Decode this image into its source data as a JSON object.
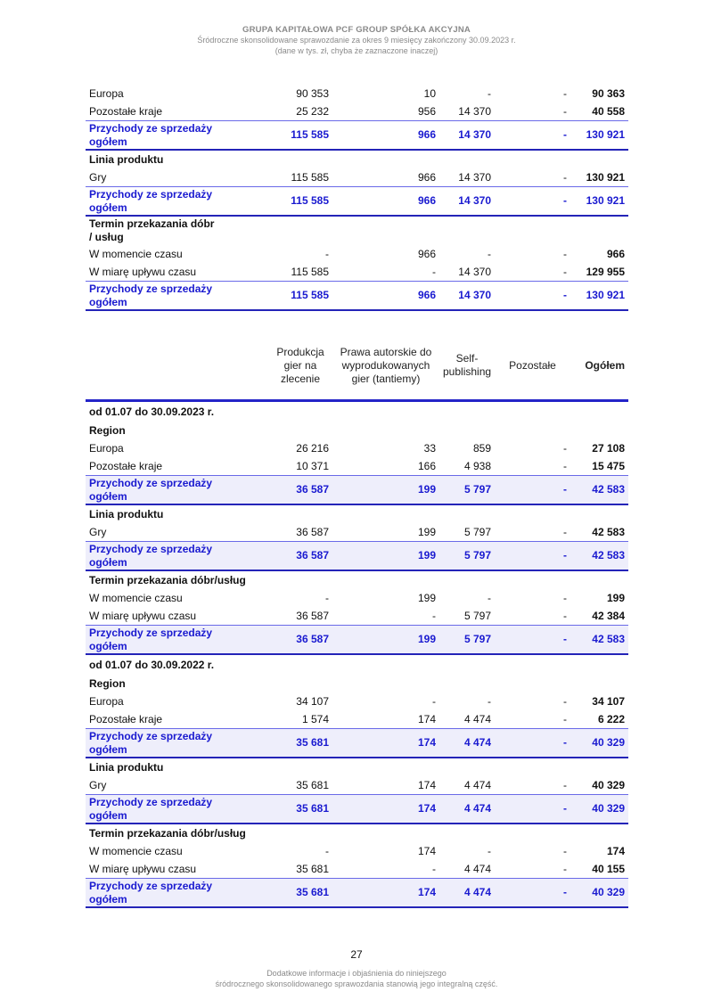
{
  "header": {
    "company": "GRUPA KAPITAŁOWA PCF GROUP SPÓŁKA AKCYJNA",
    "subtitle": "Śródroczne skonsolidowane sprawozdanie za okres 9 miesięcy zakończony 30.09.2023 r.",
    "units": "(dane w tys. zł, chyba że zaznaczone inaczej)"
  },
  "table1": {
    "rows": [
      {
        "type": "normal",
        "label": "Europa",
        "values": [
          "90 353",
          "10",
          "-",
          "-",
          "90 363"
        ]
      },
      {
        "type": "normal",
        "label": "Pozostałe kraje",
        "values": [
          "25 232",
          "956",
          "14 370",
          "-",
          "40 558"
        ]
      },
      {
        "type": "total",
        "label": "Przychody ze sprzedaży ogółem",
        "values": [
          "115 585",
          "966",
          "14 370",
          "-",
          "130 921"
        ]
      },
      {
        "type": "section",
        "label": "Linia produktu",
        "values": []
      },
      {
        "type": "normal",
        "label": "Gry",
        "values": [
          "115 585",
          "966",
          "14 370",
          "-",
          "130 921"
        ]
      },
      {
        "type": "total",
        "label": "Przychody ze sprzedaży ogółem",
        "values": [
          "115 585",
          "966",
          "14 370",
          "-",
          "130 921"
        ]
      },
      {
        "type": "section two",
        "label": "Termin przekazania dóbr / usług",
        "values": []
      },
      {
        "type": "normal",
        "label": "W momencie czasu",
        "values": [
          "-",
          "966",
          "-",
          "-",
          "966"
        ]
      },
      {
        "type": "normal",
        "label": "W miarę upływu czasu",
        "values": [
          "115 585",
          "-",
          "14 370",
          "-",
          "129 955"
        ]
      },
      {
        "type": "total",
        "label": "Przychody ze sprzedaży ogółem",
        "values": [
          "115 585",
          "966",
          "14 370",
          "-",
          "130 921"
        ]
      }
    ]
  },
  "table2": {
    "columns": [
      "Produkcja gier na zlecenie",
      "Prawa autorskie do wyprodukowanych gier (tantiemy)",
      "Self-publishing",
      "Pozostałe",
      "Ogółem"
    ],
    "rows": [
      {
        "type": "period",
        "label": "od 01.07 do 30.09.2023 r.",
        "values": []
      },
      {
        "type": "section",
        "label": "Region",
        "values": []
      },
      {
        "type": "normal",
        "label": "Europa",
        "values": [
          "26 216",
          "33",
          "859",
          "-",
          "27 108"
        ]
      },
      {
        "type": "normal",
        "label": "Pozostałe kraje",
        "values": [
          "10 371",
          "166",
          "4 938",
          "-",
          "15 475"
        ]
      },
      {
        "type": "total",
        "label": "Przychody ze sprzedaży ogółem",
        "values": [
          "36 587",
          "199",
          "5 797",
          "-",
          "42 583"
        ]
      },
      {
        "type": "section",
        "label": "Linia produktu",
        "values": []
      },
      {
        "type": "normal",
        "label": "Gry",
        "values": [
          "36 587",
          "199",
          "5 797",
          "-",
          "42 583"
        ]
      },
      {
        "type": "total",
        "label": "Przychody ze sprzedaży ogółem",
        "values": [
          "36 587",
          "199",
          "5 797",
          "-",
          "42 583"
        ]
      },
      {
        "type": "section",
        "label": "Termin przekazania dóbr/usług",
        "values": []
      },
      {
        "type": "normal",
        "label": "W momencie czasu",
        "values": [
          "-",
          "199",
          "-",
          "-",
          "199"
        ]
      },
      {
        "type": "normal",
        "label": "W miarę upływu czasu",
        "values": [
          "36 587",
          "-",
          "5 797",
          "-",
          "42 384"
        ]
      },
      {
        "type": "total",
        "label": "Przychody ze sprzedaży ogółem",
        "values": [
          "36 587",
          "199",
          "5 797",
          "-",
          "42 583"
        ]
      },
      {
        "type": "period",
        "label": "od 01.07 do 30.09.2022 r.",
        "values": []
      },
      {
        "type": "section",
        "label": "Region",
        "values": []
      },
      {
        "type": "normal",
        "label": "Europa",
        "values": [
          "34 107",
          "-",
          "-",
          "-",
          "34 107"
        ]
      },
      {
        "type": "normal",
        "label": "Pozostałe kraje",
        "values": [
          "1 574",
          "174",
          "4 474",
          "-",
          "6 222"
        ]
      },
      {
        "type": "total",
        "label": "Przychody ze sprzedaży ogółem",
        "values": [
          "35 681",
          "174",
          "4 474",
          "-",
          "40 329"
        ]
      },
      {
        "type": "section",
        "label": "Linia produktu",
        "values": []
      },
      {
        "type": "normal",
        "label": "Gry",
        "values": [
          "35 681",
          "174",
          "4 474",
          "-",
          "40 329"
        ]
      },
      {
        "type": "total",
        "label": "Przychody ze sprzedaży ogółem",
        "values": [
          "35 681",
          "174",
          "4 474",
          "-",
          "40 329"
        ]
      },
      {
        "type": "section",
        "label": "Termin przekazania dóbr/usług",
        "values": []
      },
      {
        "type": "normal",
        "label": "W momencie czasu",
        "values": [
          "-",
          "174",
          "-",
          "-",
          "174"
        ]
      },
      {
        "type": "normal",
        "label": "W miarę upływu czasu",
        "values": [
          "35 681",
          "-",
          "4 474",
          "-",
          "40 155"
        ]
      },
      {
        "type": "total",
        "label": "Przychody ze sprzedaży ogółem",
        "values": [
          "35 681",
          "174",
          "4 474",
          "-",
          "40 329"
        ]
      }
    ]
  },
  "footer": {
    "page_number": "27",
    "note_line1": "Dodatkowe informacje i objaśnienia do niniejszego",
    "note_line2": "śródrocznego skonsolidowanego sprawozdania  stanowią jego integralną część."
  },
  "colors": {
    "accent_blue": "#1a1ad0",
    "rule_blue": "#2424b8",
    "total_bg": "#eeeefb"
  }
}
